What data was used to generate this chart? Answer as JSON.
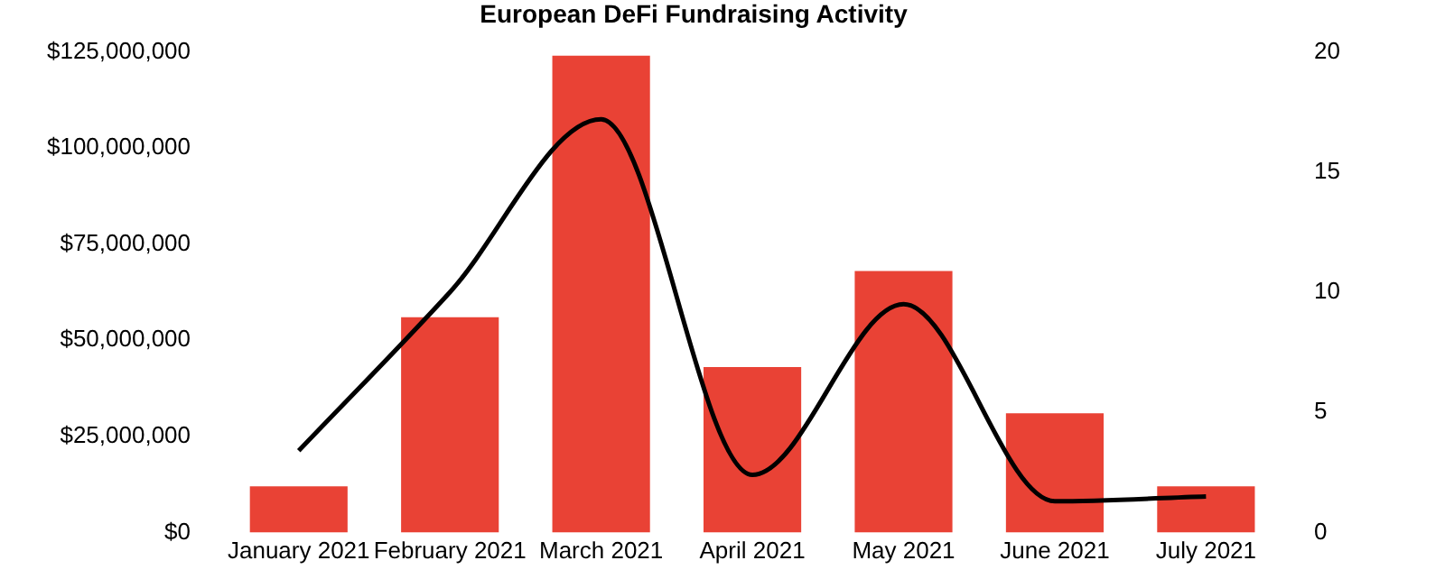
{
  "chart_data": {
    "type": "bar",
    "title": "European DeFi Fundraising Activity",
    "categories": [
      "January 2021",
      "February 2021",
      "March 2021",
      "April 2021",
      "May 2021",
      "June 2021",
      "July 2021"
    ],
    "series": [
      {
        "color": "#e94235",
        "values": [
          12000000,
          56000000,
          124000000,
          43000000,
          68000000,
          31000000,
          12000000
        ]
      },
      {
        "type": "line",
        "axis": "y2",
        "color": "#000000",
        "values": [
          3.4,
          10,
          17.2,
          2.4,
          9.5,
          1.3,
          1.5
        ]
      }
    ],
    "ylim": [
      0,
      125000000
    ],
    "yticks": [
      {
        "value": 0,
        "label": "$0"
      },
      {
        "value": 25000000,
        "label": "$25,000,000"
      },
      {
        "value": 50000000,
        "label": "$50,000,000"
      },
      {
        "value": 75000000,
        "label": "$75,000,000"
      },
      {
        "value": 100000000,
        "label": "$100,000,000"
      },
      {
        "value": 125000000,
        "label": "$125,000,000"
      }
    ],
    "y2lim": [
      0,
      20
    ],
    "y2ticks": [
      0,
      5,
      10,
      15,
      20
    ],
    "grid": false,
    "legend": false,
    "marker": "none"
  }
}
